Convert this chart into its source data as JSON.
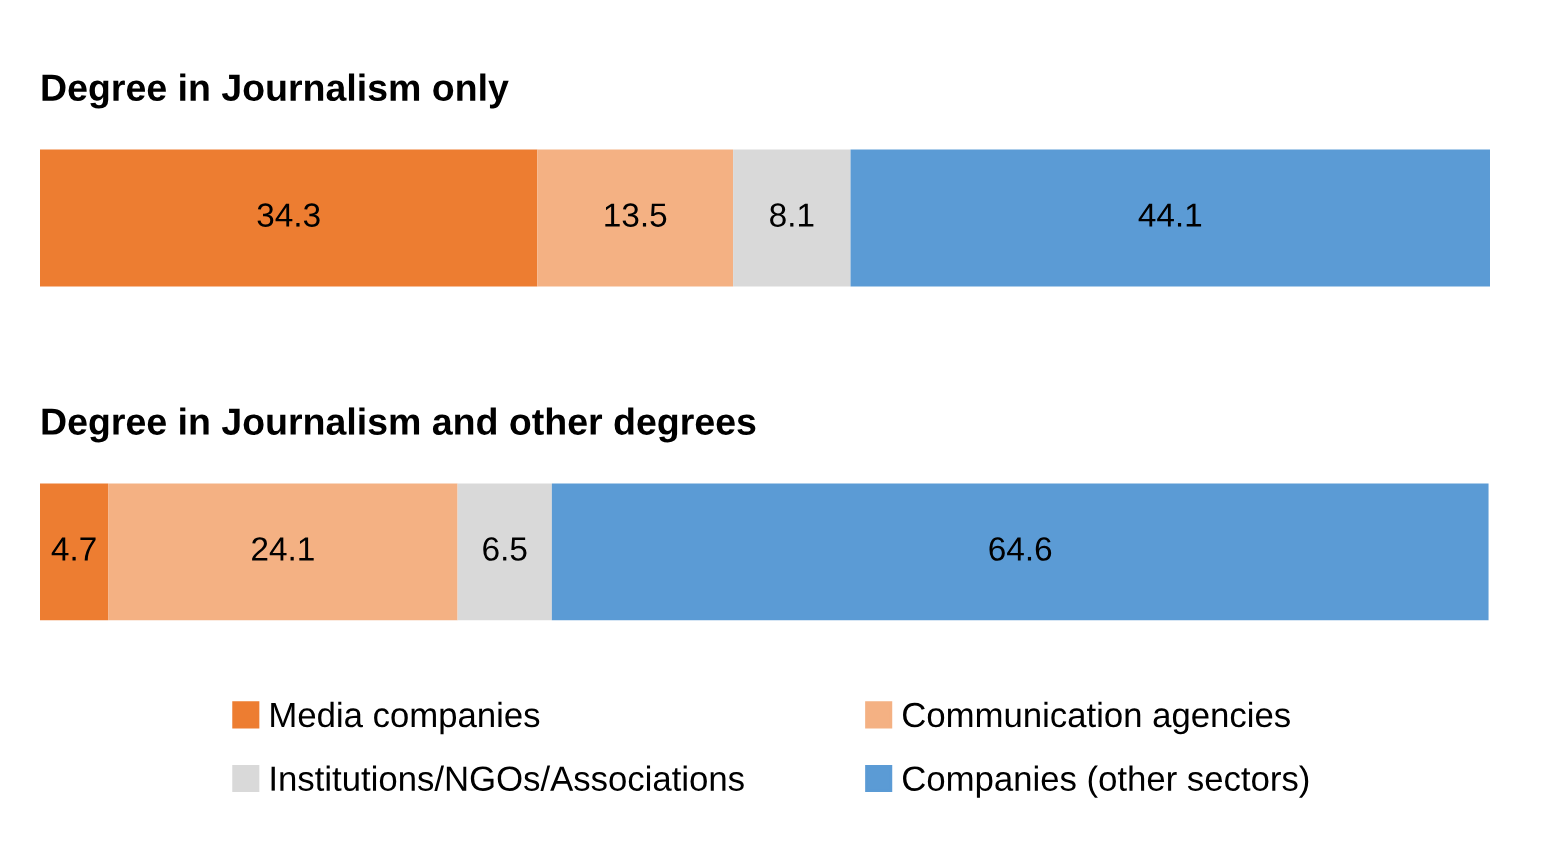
{
  "chart_data": {
    "type": "bar",
    "orientation": "horizontal",
    "stacked": true,
    "data_labels": true,
    "legend": "bottom",
    "categories": [
      "Degree in Journalism only",
      "Degree in Journalism and other degrees"
    ],
    "series": [
      {
        "name": "Media companies",
        "color": "#ed7d31",
        "values": [
          34.3,
          4.7
        ]
      },
      {
        "name": "Communication agencies",
        "color": "#f4b183",
        "values": [
          13.5,
          24.1
        ]
      },
      {
        "name": "Institutions/NGOs/Associations",
        "color": "#d9d9d9",
        "values": [
          8.1,
          6.5
        ]
      },
      {
        "name": "Companies (other sectors)",
        "color": "#5b9bd5",
        "values": [
          44.1,
          64.6
        ]
      }
    ]
  }
}
